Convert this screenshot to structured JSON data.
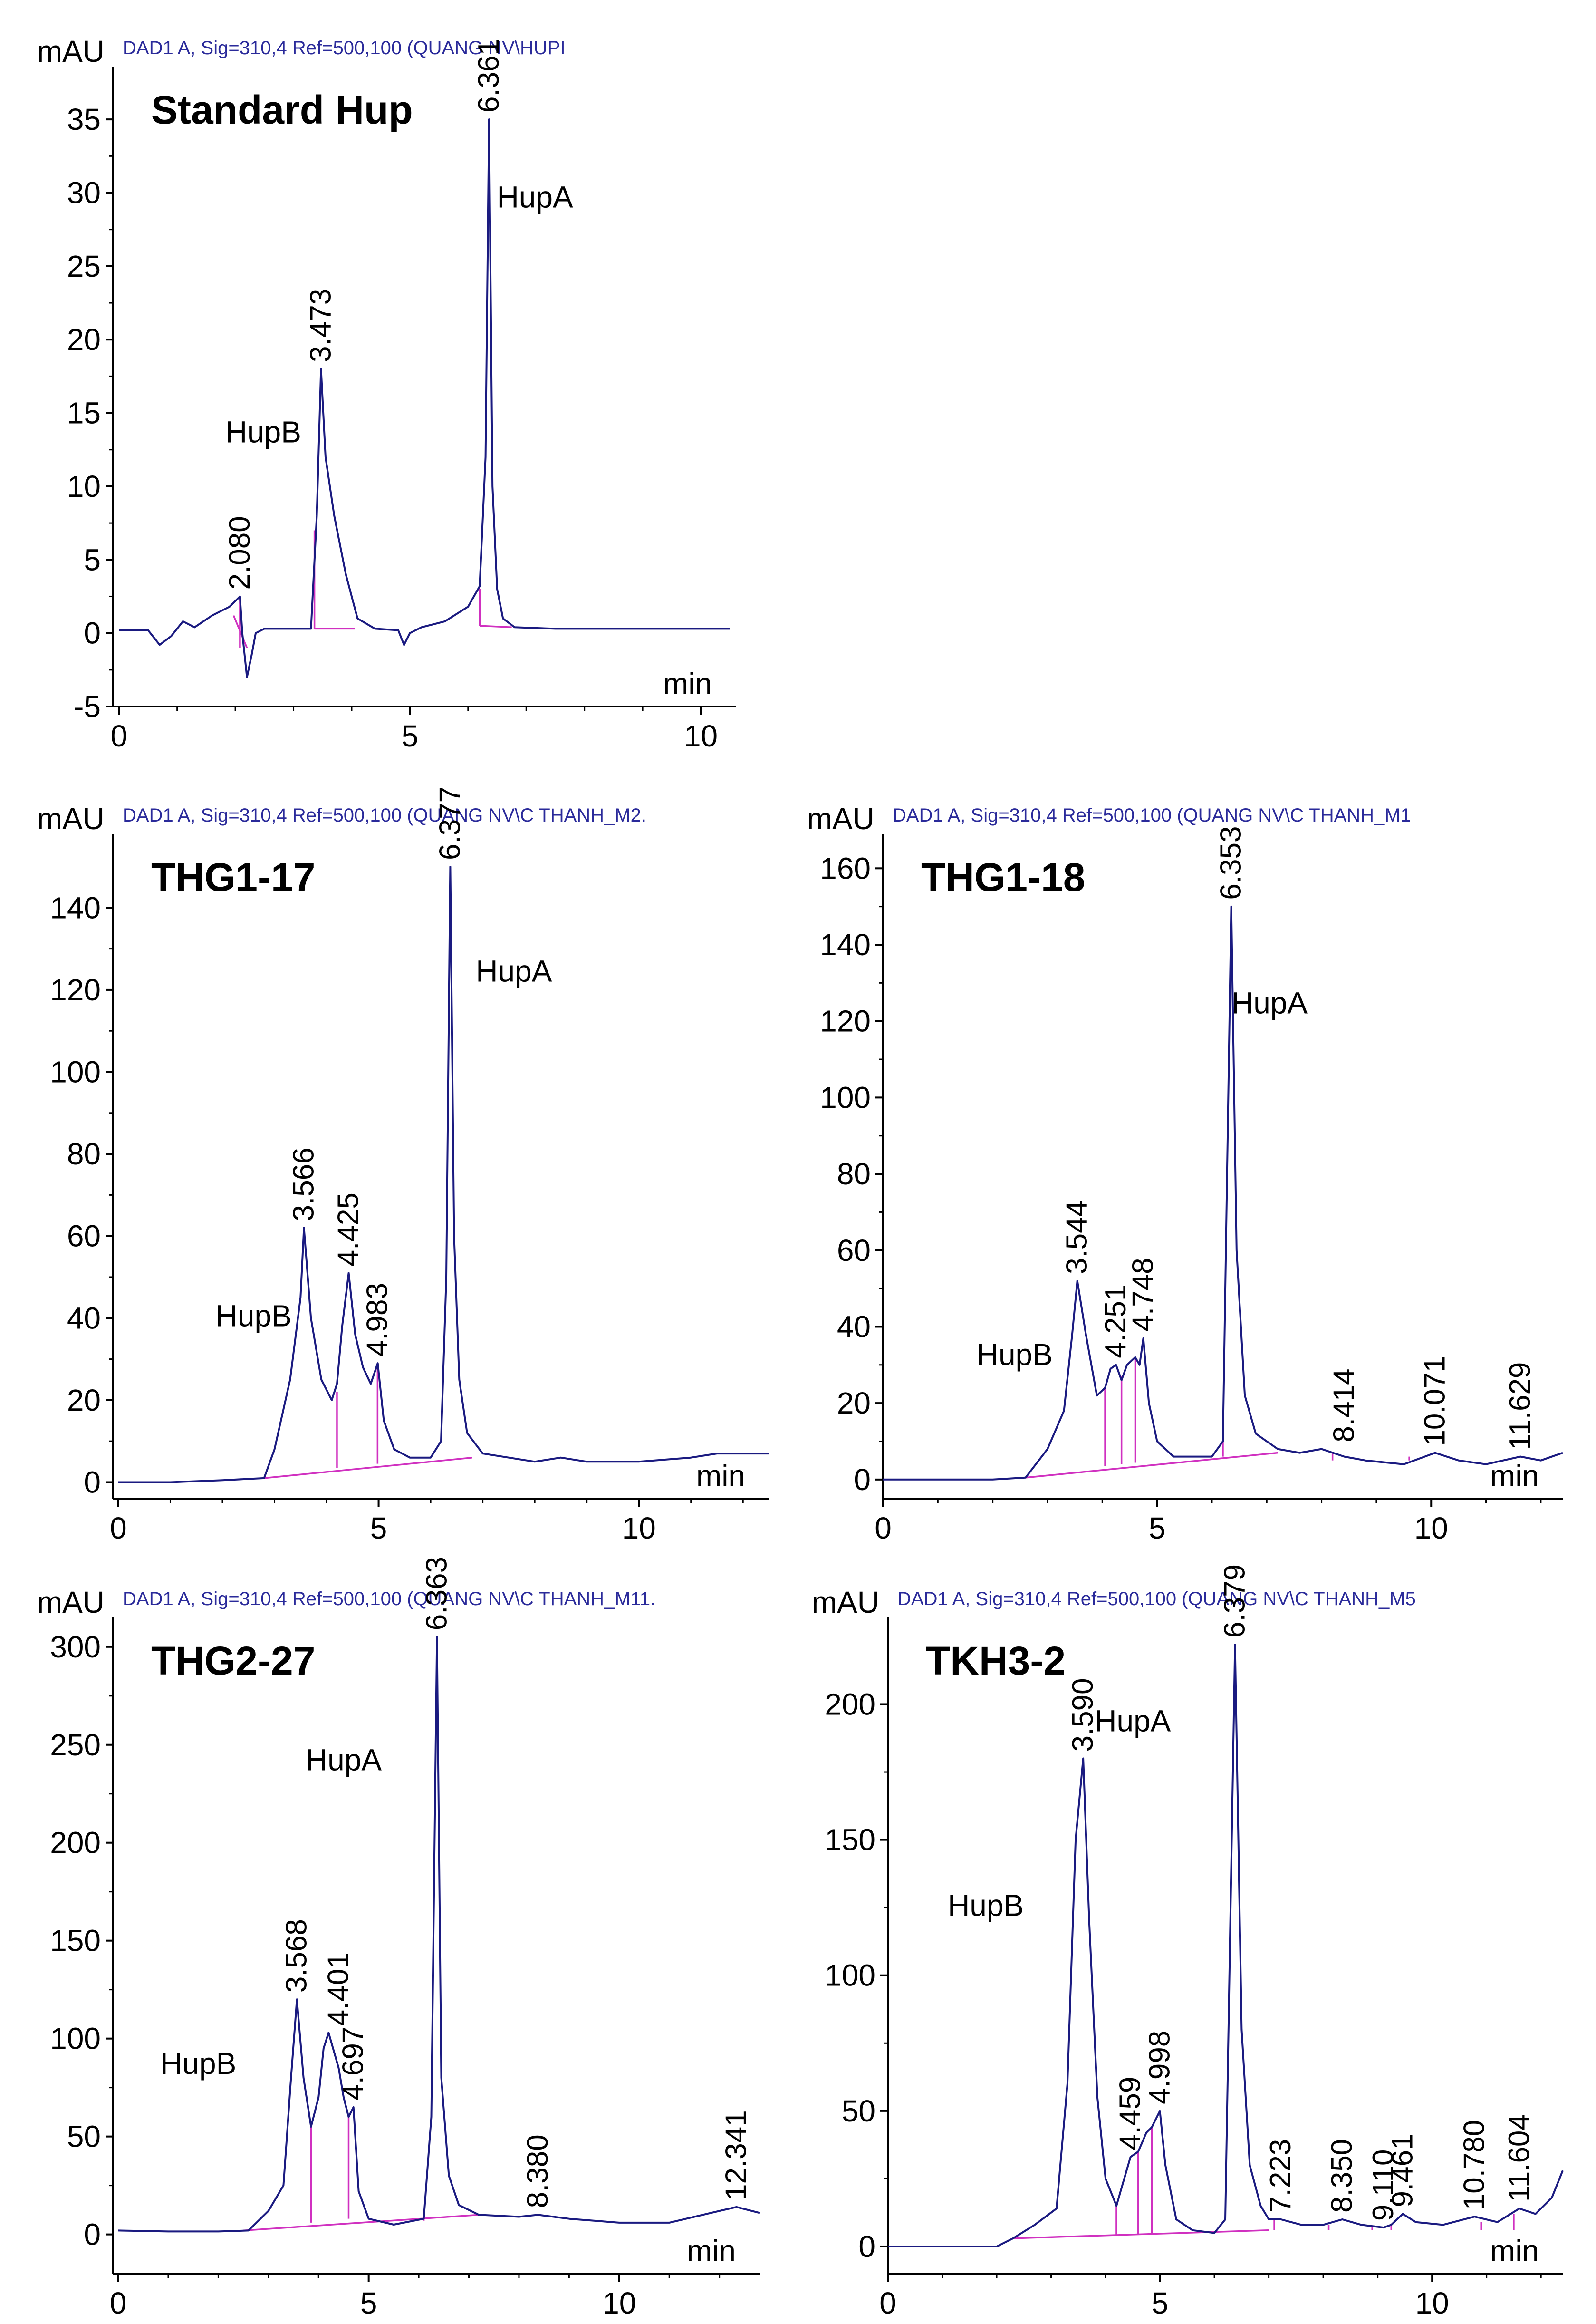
{
  "chart_data": [
    {
      "type": "line",
      "header": "DAD1 A, Sig=310,4 Ref=500,100 (QUANG NV\\HUPI",
      "title": "Standard Hup",
      "xlabel": "min",
      "ylabel": "mAU",
      "xlim": [
        -0.1,
        10.6
      ],
      "ylim": [
        -5,
        38.6
      ],
      "xticks": [
        0,
        5,
        10
      ],
      "yticks": [
        -5,
        0,
        5,
        10,
        15,
        20,
        25,
        30,
        35
      ],
      "series": [
        {
          "name": "DAD1 A",
          "x": [
            0,
            0.5,
            0.7,
            0.9,
            1.1,
            1.3,
            1.6,
            1.9,
            2.08,
            2.12,
            2.2,
            2.28,
            2.35,
            2.5,
            3.0,
            3.3,
            3.4,
            3.473,
            3.55,
            3.7,
            3.9,
            4.1,
            4.4,
            4.8,
            4.9,
            5.0,
            5.2,
            5.6,
            6.0,
            6.2,
            6.3,
            6.361,
            6.42,
            6.5,
            6.6,
            6.8,
            7.5,
            8.5,
            9.5,
            10.5
          ],
          "y": [
            0.2,
            0.2,
            -0.8,
            -0.2,
            0.8,
            0.4,
            1.2,
            1.8,
            2.5,
            0,
            -3,
            -1.5,
            0,
            0.3,
            0.3,
            0.3,
            8,
            18,
            12,
            8,
            4,
            1,
            0.3,
            0.2,
            -0.8,
            0,
            0.4,
            0.8,
            1.8,
            3.2,
            12,
            35,
            10,
            3,
            1,
            0.4,
            0.3,
            0.3,
            0.3,
            0.3
          ]
        }
      ],
      "baselines": [
        [
          [
            1.97,
            1.2
          ],
          [
            2.2,
            -1.0
          ]
        ],
        [
          [
            2.08,
            2.5
          ],
          [
            2.08,
            -1.0
          ]
        ],
        [
          [
            3.36,
            0.3
          ],
          [
            4.05,
            0.3
          ]
        ],
        [
          [
            3.36,
            0.3
          ],
          [
            3.36,
            7
          ]
        ],
        [
          [
            6.2,
            0.5
          ],
          [
            6.75,
            0.4
          ]
        ],
        [
          [
            6.2,
            0.5
          ],
          [
            6.2,
            3
          ]
        ]
      ],
      "peak_labels": [
        {
          "x": 2.08,
          "y": 2.5,
          "text": "2.080"
        },
        {
          "x": 3.473,
          "y": 18,
          "text": "3.473"
        },
        {
          "x": 6.361,
          "y": 35,
          "text": "6.361"
        }
      ],
      "annotations": [
        {
          "text": "HupB",
          "x": 2.48,
          "y": 13
        },
        {
          "text": "HupA",
          "x": 7.15,
          "y": 29
        }
      ]
    },
    {
      "type": "line",
      "header": "DAD1 A, Sig=310,4 Ref=500,100 (QUANG NV\\C THANH_M2.",
      "title": "THG1-17",
      "xlabel": "min",
      "ylabel": "mAU",
      "xlim": [
        -0.1,
        12.5
      ],
      "ylim": [
        -4,
        158
      ],
      "xticks": [
        0,
        5,
        10
      ],
      "yticks": [
        0,
        20,
        40,
        60,
        80,
        100,
        120,
        140
      ],
      "series": [
        {
          "name": "DAD1 A",
          "x": [
            0,
            1.0,
            2.0,
            2.8,
            3.0,
            3.3,
            3.5,
            3.566,
            3.7,
            3.9,
            4.1,
            4.2,
            4.3,
            4.425,
            4.55,
            4.7,
            4.85,
            4.983,
            5.1,
            5.3,
            5.6,
            6.0,
            6.2,
            6.3,
            6.377,
            6.45,
            6.55,
            6.7,
            7.0,
            7.5,
            8.0,
            8.5,
            9.0,
            10.0,
            11.0,
            11.5,
            12.5
          ],
          "y": [
            0,
            0,
            0.5,
            1,
            8,
            25,
            45,
            62,
            40,
            25,
            20,
            24,
            38,
            51,
            36,
            28,
            24,
            29,
            15,
            8,
            6,
            6,
            10,
            50,
            150,
            60,
            25,
            12,
            7,
            6,
            5,
            6,
            5,
            5,
            6,
            7,
            7
          ]
        }
      ],
      "baselines": [
        [
          [
            2.8,
            1
          ],
          [
            6.8,
            6
          ]
        ],
        [
          [
            4.2,
            3.5
          ],
          [
            4.2,
            22
          ]
        ],
        [
          [
            4.98,
            4.5
          ],
          [
            4.98,
            28
          ]
        ]
      ],
      "peak_labels": [
        {
          "x": 3.566,
          "y": 62,
          "text": "3.566"
        },
        {
          "x": 4.425,
          "y": 51,
          "text": "4.425"
        },
        {
          "x": 4.983,
          "y": 29,
          "text": "4.983"
        },
        {
          "x": 6.377,
          "y": 150,
          "text": "6.377"
        }
      ],
      "annotations": [
        {
          "text": "HupB",
          "x": 2.6,
          "y": 38
        },
        {
          "text": "HupA",
          "x": 7.6,
          "y": 122
        }
      ]
    },
    {
      "type": "line",
      "header": "DAD1 A, Sig=310,4 Ref=500,100 (QUANG NV\\C THANH_M1",
      "title": "THG1-18",
      "xlabel": "min",
      "ylabel": "mAU",
      "xlim": [
        0,
        12.4
      ],
      "ylim": [
        -5,
        169
      ],
      "xticks": [
        0,
        5,
        10
      ],
      "yticks": [
        0,
        20,
        40,
        60,
        80,
        100,
        120,
        140,
        160
      ],
      "series": [
        {
          "name": "DAD1 A",
          "x": [
            0,
            1.0,
            2.0,
            2.6,
            3.0,
            3.3,
            3.45,
            3.544,
            3.7,
            3.9,
            4.05,
            4.15,
            4.251,
            4.35,
            4.45,
            4.6,
            4.68,
            4.748,
            4.85,
            5.0,
            5.3,
            6.0,
            6.2,
            6.353,
            6.45,
            6.6,
            6.8,
            7.2,
            7.6,
            8.0,
            8.414,
            8.8,
            9.5,
            10.071,
            10.5,
            11.0,
            11.629,
            12.0,
            12.4
          ],
          "y": [
            0,
            0,
            0,
            0.5,
            8,
            18,
            38,
            52,
            38,
            22,
            24,
            29,
            30,
            26,
            30,
            32,
            30,
            37,
            20,
            10,
            6,
            6,
            10,
            150,
            60,
            22,
            12,
            8,
            7,
            8,
            6,
            5,
            4,
            7,
            5,
            4,
            6,
            5,
            7
          ]
        }
      ],
      "baselines": [
        [
          [
            2.6,
            0.5
          ],
          [
            7.2,
            7
          ]
        ],
        [
          [
            4.05,
            3.5
          ],
          [
            4.05,
            24
          ]
        ],
        [
          [
            4.35,
            4
          ],
          [
            4.35,
            27
          ]
        ],
        [
          [
            4.6,
            4.4
          ],
          [
            4.6,
            32
          ]
        ],
        [
          [
            6.2,
            6
          ],
          [
            6.2,
            10
          ]
        ],
        [
          [
            8.2,
            5
          ],
          [
            8.2,
            7
          ]
        ],
        [
          [
            9.6,
            5
          ],
          [
            9.6,
            6
          ]
        ],
        [
          [
            10.9,
            5
          ],
          [
            10.9,
            5
          ]
        ]
      ],
      "peak_labels": [
        {
          "x": 3.544,
          "y": 52,
          "text": "3.544"
        },
        {
          "x": 4.251,
          "y": 30,
          "text": "4.251"
        },
        {
          "x": 4.748,
          "y": 37,
          "text": "4.748"
        },
        {
          "x": 6.353,
          "y": 150,
          "text": "6.353"
        },
        {
          "x": 8.414,
          "y": 8,
          "text": "8.414"
        },
        {
          "x": 10.071,
          "y": 7,
          "text": "10.071"
        },
        {
          "x": 11.629,
          "y": 6,
          "text": "11.629"
        }
      ],
      "annotations": [
        {
          "text": "HupB",
          "x": 2.4,
          "y": 30
        },
        {
          "text": "HupA",
          "x": 7.05,
          "y": 122
        }
      ]
    },
    {
      "type": "line",
      "header": "DAD1 A, Sig=310,4 Ref=500,100 (QUANG NV\\C THANH_M11.",
      "title": "THG2-27",
      "xlabel": "min",
      "ylabel": "mAU",
      "xlim": [
        -0.1,
        12.8
      ],
      "ylim": [
        -20,
        315
      ],
      "xticks": [
        0,
        5,
        10
      ],
      "yticks": [
        0,
        50,
        100,
        150,
        200,
        250,
        300
      ],
      "series": [
        {
          "name": "DAD1 A",
          "x": [
            0,
            1.0,
            2.0,
            2.6,
            3.0,
            3.3,
            3.45,
            3.568,
            3.7,
            3.85,
            4.0,
            4.1,
            4.2,
            4.401,
            4.5,
            4.6,
            4.697,
            4.8,
            5.0,
            5.5,
            6.1,
            6.25,
            6.363,
            6.45,
            6.6,
            6.8,
            7.2,
            8.0,
            8.38,
            9.0,
            10.0,
            11.0,
            12.0,
            12.341,
            12.8
          ],
          "y": [
            2,
            1.5,
            1.5,
            2,
            12,
            25,
            80,
            120,
            80,
            55,
            70,
            95,
            103,
            85,
            70,
            60,
            65,
            22,
            8,
            5,
            8,
            60,
            305,
            80,
            30,
            15,
            10,
            9,
            10,
            8,
            6,
            6,
            12,
            14,
            11
          ]
        }
      ],
      "baselines": [
        [
          [
            2.5,
            2
          ],
          [
            7.2,
            10
          ]
        ],
        [
          [
            3.85,
            6
          ],
          [
            3.85,
            55
          ]
        ],
        [
          [
            4.6,
            8
          ],
          [
            4.6,
            60
          ]
        ],
        [
          [
            6.1,
            7
          ],
          [
            6.1,
            8
          ]
        ],
        [
          [
            8.2,
            9
          ],
          [
            8.2,
            9
          ]
        ]
      ],
      "peak_labels": [
        {
          "x": 3.568,
          "y": 120,
          "text": "3.568"
        },
        {
          "x": 4.401,
          "y": 103,
          "text": "4.401"
        },
        {
          "x": 4.697,
          "y": 65,
          "text": "4.697"
        },
        {
          "x": 6.363,
          "y": 305,
          "text": "6.363"
        },
        {
          "x": 8.38,
          "y": 10,
          "text": "8.380"
        },
        {
          "x": 12.341,
          "y": 14,
          "text": "12.341"
        }
      ],
      "annotations": [
        {
          "text": "HupB",
          "x": 1.6,
          "y": 82
        },
        {
          "text": "HupA",
          "x": 4.5,
          "y": 237
        }
      ]
    },
    {
      "type": "line",
      "header": "DAD1 A, Sig=310,4 Ref=500,100 (QUANG NV\\C THANH_M5",
      "title": "TKH3-2",
      "xlabel": "min",
      "ylabel": "mAU",
      "xlim": [
        0,
        12.4
      ],
      "ylim": [
        -10,
        232
      ],
      "xticks": [
        0,
        5,
        10
      ],
      "yticks": [
        0,
        50,
        100,
        150,
        200
      ],
      "series": [
        {
          "name": "DAD1 A",
          "x": [
            0,
            1.0,
            2.0,
            2.3,
            2.7,
            3.1,
            3.3,
            3.45,
            3.59,
            3.7,
            3.85,
            4.0,
            4.2,
            4.3,
            4.459,
            4.6,
            4.75,
            4.85,
            4.998,
            5.1,
            5.3,
            5.6,
            6.0,
            6.2,
            6.379,
            6.5,
            6.65,
            6.85,
            7.0,
            7.223,
            7.6,
            8.0,
            8.35,
            8.7,
            9.11,
            9.25,
            9.461,
            9.7,
            10.2,
            10.78,
            11.2,
            11.604,
            11.9,
            12.2,
            12.4
          ],
          "y": [
            0,
            0,
            0,
            3,
            8,
            14,
            60,
            150,
            180,
            120,
            55,
            25,
            15,
            22,
            33,
            35,
            42,
            44,
            50,
            30,
            10,
            6,
            5,
            10,
            222,
            80,
            30,
            15,
            10,
            10,
            8,
            8,
            10,
            8,
            7,
            8,
            12,
            9,
            8,
            11,
            9,
            14,
            12,
            18,
            28
          ]
        }
      ],
      "baselines": [
        [
          [
            2.3,
            3
          ],
          [
            7.0,
            6
          ]
        ],
        [
          [
            4.2,
            4
          ],
          [
            4.2,
            15
          ]
        ],
        [
          [
            4.6,
            4.5
          ],
          [
            4.6,
            35
          ]
        ],
        [
          [
            4.85,
            5
          ],
          [
            4.85,
            44
          ]
        ],
        [
          [
            7.1,
            6
          ],
          [
            7.1,
            10
          ]
        ],
        [
          [
            8.1,
            6
          ],
          [
            8.1,
            8
          ]
        ],
        [
          [
            8.9,
            6
          ],
          [
            8.9,
            7
          ]
        ],
        [
          [
            9.25,
            6
          ],
          [
            9.25,
            8
          ]
        ],
        [
          [
            10.9,
            6
          ],
          [
            10.9,
            9
          ]
        ],
        [
          [
            11.5,
            6
          ],
          [
            11.5,
            12
          ]
        ]
      ],
      "peak_labels": [
        {
          "x": 3.59,
          "y": 180,
          "text": "3.590"
        },
        {
          "x": 4.459,
          "y": 33,
          "text": "4.459"
        },
        {
          "x": 4.998,
          "y": 50,
          "text": "4.998"
        },
        {
          "x": 6.379,
          "y": 222,
          "text": "6.379"
        },
        {
          "x": 7.223,
          "y": 10,
          "text": "7.223"
        },
        {
          "x": 8.35,
          "y": 10,
          "text": "8.350"
        },
        {
          "x": 9.11,
          "y": 7,
          "text": "9.110"
        },
        {
          "x": 9.461,
          "y": 12,
          "text": "9.461"
        },
        {
          "x": 10.78,
          "y": 11,
          "text": "10.780"
        },
        {
          "x": 11.604,
          "y": 14,
          "text": "11.604"
        }
      ],
      "annotations": [
        {
          "text": "HupB",
          "x": 1.8,
          "y": 122
        },
        {
          "text": "HupA",
          "x": 4.5,
          "y": 190
        }
      ]
    }
  ],
  "colors": {
    "trace": "#1a1a80",
    "baseline": "#d030c0",
    "header": "#2a2a9a",
    "axis": "#000000"
  }
}
